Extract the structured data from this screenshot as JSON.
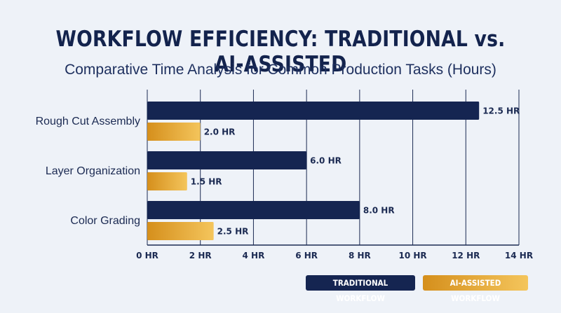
{
  "title": "WORKFLOW EFFICIENCY: TRADITIONAL vs. AI-ASSISTED",
  "subtitle": "Comparative Time Analysis for Common Production Tasks (Hours)",
  "colors": {
    "traditional": "#152551",
    "ai_start": "#d58f1c",
    "ai_end": "#f4c55c",
    "grid": "#1b2a52",
    "background": "#eef2f8"
  },
  "chart_data": {
    "type": "bar",
    "orientation": "horizontal",
    "categories": [
      "Rough Cut Assembly",
      "Layer Organization",
      "Color Grading"
    ],
    "series": [
      {
        "name": "TRADITIONAL WORKFLOW",
        "values": [
          12.5,
          6.0,
          8.0
        ],
        "labels": [
          "12.5 HR",
          "6.0 HR",
          "8.0 HR"
        ]
      },
      {
        "name": "AI-ASSISTED WORKFLOW",
        "values": [
          2.0,
          1.5,
          2.5
        ],
        "labels": [
          "2.0 HR",
          "1.5 HR",
          "2.5 HR"
        ]
      }
    ],
    "xlim": [
      0,
      14
    ],
    "xticks": [
      0,
      2,
      4,
      6,
      8,
      10,
      12,
      14
    ],
    "xtick_labels": [
      "0 HR",
      "2 HR",
      "4 HR",
      "6 HR",
      "8 HR",
      "10 HR",
      "12 HR",
      "14 HR"
    ],
    "grid": true,
    "legend_position": "bottom-right"
  },
  "legend": {
    "traditional": "TRADITIONAL WORKFLOW",
    "ai": "AI-ASSISTED WORKFLOW"
  }
}
